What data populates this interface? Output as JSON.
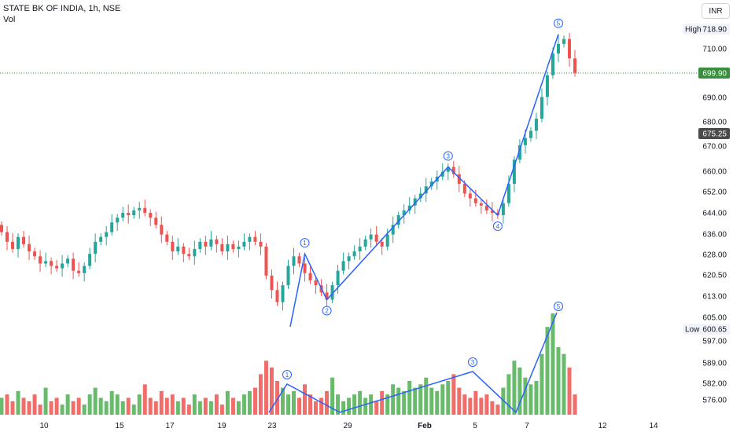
{
  "header": {
    "symbol": "STATE BK OF INDIA, 1h, NSE",
    "volume_label": "Vol"
  },
  "currency_button": "INR",
  "colors": {
    "up": "#26a69a",
    "up_bar": "#4caf50",
    "down": "#ef5350",
    "wave_line": "#2962ff",
    "last_price_bg": "#388e3c",
    "marker_bg": "#4a4a4a"
  },
  "chart_data": {
    "type": "candlestick",
    "symbol": "STATE BK OF INDIA",
    "interval": "1h",
    "exchange": "NSE",
    "currency": "INR",
    "y_ticks": [
      718.9,
      710.0,
      699.9,
      690.0,
      680.0,
      675.25,
      670.0,
      660.0,
      652.0,
      644.0,
      636.0,
      628.0,
      620.5,
      613.0,
      605.0,
      600.65,
      597.0,
      589.0,
      582.0,
      576.0
    ],
    "y_tick_labels": [
      "718.90",
      "710.00",
      "699.90",
      "690.00",
      "680.00",
      "675.25",
      "670.00",
      "660.00",
      "652.00",
      "644.00",
      "636.00",
      "628.00",
      "620.50",
      "613.00",
      "605.00",
      "600.65",
      "597.00",
      "589.00",
      "582.00",
      "576.00"
    ],
    "x_ticks": [
      "10",
      "15",
      "17",
      "19",
      "23",
      "29",
      "Feb",
      "5",
      "7",
      "12",
      "14"
    ],
    "high": {
      "label": "High",
      "value": "718.90"
    },
    "low": {
      "label": "Low",
      "value": "600.65"
    },
    "last_price": "699.90",
    "marker_price": "675.25",
    "price_wave": [
      {
        "label": "1",
        "price": 625.0
      },
      {
        "label": "2",
        "price": 606.0
      },
      {
        "label": "3",
        "price": 661.0
      },
      {
        "label": "4",
        "price": 641.0
      },
      {
        "label": "5",
        "price": 716.0
      }
    ],
    "volume_wave": [
      "1",
      "3",
      "5"
    ],
    "close": [
      634,
      630,
      627,
      632,
      629,
      626,
      624,
      621,
      622,
      620,
      619,
      621,
      623,
      618,
      617,
      620,
      625,
      630,
      632,
      634,
      638,
      640,
      642,
      641,
      643,
      644,
      642,
      640,
      637,
      633,
      630,
      626,
      628,
      625,
      624,
      627,
      630,
      628,
      631,
      629,
      626,
      629,
      627,
      628,
      630,
      632,
      630,
      628,
      616,
      610,
      605,
      612,
      620,
      624,
      621,
      617,
      614,
      612,
      609,
      606,
      612,
      618,
      622,
      624,
      626,
      628,
      631,
      633,
      630,
      628,
      633,
      637,
      641,
      643,
      645,
      648,
      650,
      653,
      655,
      657,
      659,
      661,
      658,
      654,
      650,
      648,
      646,
      645,
      643,
      642,
      641,
      646,
      654,
      664,
      670,
      673,
      676,
      681,
      690,
      699,
      708,
      712,
      714,
      706,
      699.9
    ],
    "volume": [
      5,
      6,
      4,
      7,
      5,
      4,
      6,
      3,
      8,
      4,
      5,
      3,
      6,
      4,
      5,
      3,
      6,
      8,
      5,
      4,
      7,
      6,
      4,
      5,
      3,
      6,
      9,
      5,
      4,
      7,
      5,
      6,
      4,
      5,
      3,
      6,
      4,
      5,
      4,
      6,
      3,
      7,
      5,
      4,
      6,
      7,
      8,
      12,
      16,
      14,
      10,
      8,
      6,
      7,
      5,
      9,
      6,
      4,
      5,
      7,
      11,
      6,
      4,
      5,
      6,
      7,
      5,
      6,
      4,
      7,
      6,
      9,
      8,
      7,
      10,
      8,
      9,
      11,
      8,
      7,
      9,
      10,
      12,
      8,
      6,
      5,
      7,
      5,
      6,
      4,
      3,
      8,
      12,
      16,
      14,
      11,
      9,
      10,
      18,
      26,
      30,
      20,
      18,
      14,
      6
    ]
  }
}
